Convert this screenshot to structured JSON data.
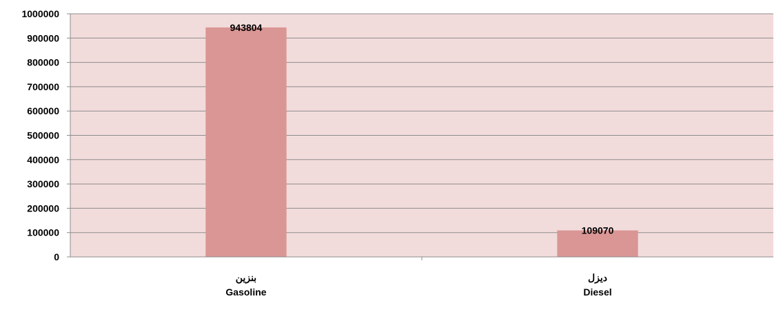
{
  "chart_data": {
    "type": "bar",
    "categories": [
      {
        "label_ar": "بنزين",
        "label_en": "Gasoline"
      },
      {
        "label_ar": "ديزل",
        "label_en": "Diesel"
      }
    ],
    "values": [
      943804,
      109070
    ],
    "data_labels": [
      "943804",
      "109070"
    ],
    "ylim": [
      0,
      1000000
    ],
    "yticks": [
      0,
      100000,
      200000,
      300000,
      400000,
      500000,
      600000,
      700000,
      800000,
      900000,
      1000000
    ],
    "ytick_labels": [
      "0",
      "100000",
      "200000",
      "300000",
      "400000",
      "500000",
      "600000",
      "700000",
      "800000",
      "900000",
      "1000000"
    ],
    "grid": true,
    "legend": "none",
    "colors": {
      "plot_background": "#f2dcdb",
      "bar": "#d99694",
      "gridline": "#8c8c8c",
      "axis": "#8c8c8c"
    }
  }
}
